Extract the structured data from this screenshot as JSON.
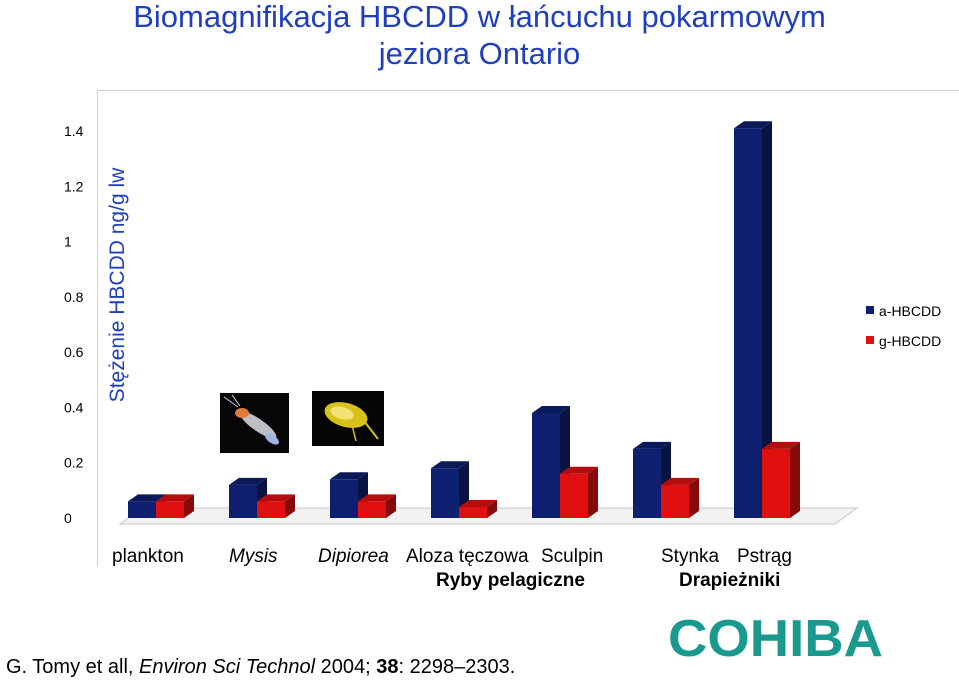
{
  "title_line1": "Biomagnifikacja HBCDD w łańcuchu pokarmowym",
  "title_line2": "jeziora Ontario",
  "citation": {
    "author": "G. Tomy et all, ",
    "journal": "Environ Sci Technol",
    "year": " 2004; ",
    "volume": "38",
    "pages": ": 2298–2303."
  },
  "logo_text": "COHIBA",
  "chart_data": {
    "type": "bar",
    "ylabel": "Stężenie HBCDD ng/g lw",
    "ylim": [
      0,
      1.4
    ],
    "yticks": [
      "0",
      "0.2",
      "0.4",
      "0.6",
      "0.8",
      "1",
      "1.2",
      "1.4"
    ],
    "categories": [
      "plankton",
      "Mysis",
      "Dipiorea",
      "Aloza tęczowa",
      "Sculpin",
      "Stynka",
      "Pstrąg"
    ],
    "category_italic": [
      false,
      true,
      true,
      false,
      false,
      false,
      false
    ],
    "groups": [
      {
        "label": "Ryby pelagiczne"
      },
      {
        "label": "Drapieżniki"
      }
    ],
    "series": [
      {
        "name": "a-HBCDD",
        "color": "#0d1f6e",
        "values": [
          0.06,
          0.12,
          0.14,
          0.18,
          0.38,
          0.25,
          1.41
        ]
      },
      {
        "name": "g-HBCDD",
        "color": "#e01010",
        "values": [
          0.06,
          0.06,
          0.06,
          0.04,
          0.16,
          0.12,
          0.25
        ]
      }
    ],
    "grid": false,
    "legend_position": "right"
  }
}
